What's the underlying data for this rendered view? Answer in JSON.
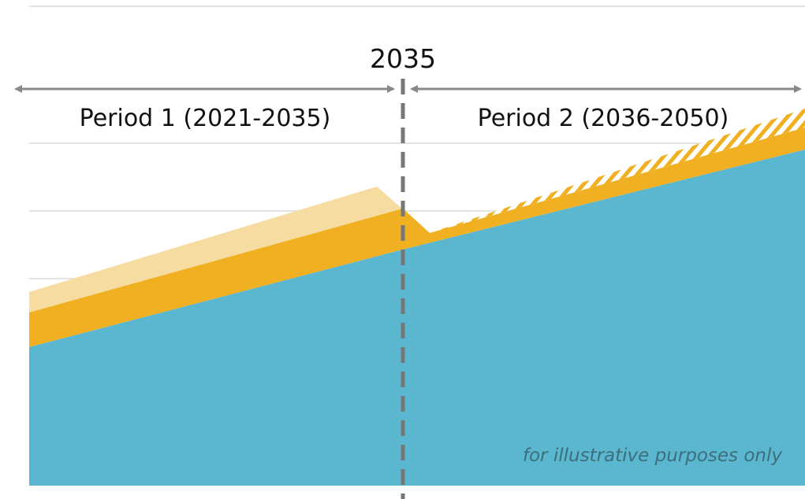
{
  "year_label": "2035",
  "periods": [
    {
      "label": "Period 1 (2021-2035)"
    },
    {
      "label": "Period 2 (2036-2050)"
    }
  ],
  "note": "for illustrative purposes only"
}
